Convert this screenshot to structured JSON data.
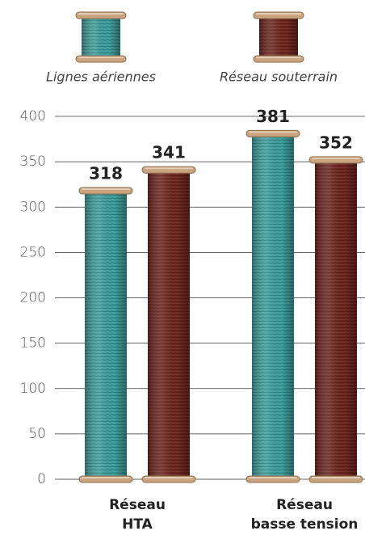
{
  "chart_data": {
    "type": "bar",
    "categories": [
      [
        "Réseau",
        "HTA"
      ],
      [
        "Réseau",
        "basse tension"
      ]
    ],
    "series": [
      {
        "name": "Lignes aériennes",
        "color": "#3a9e9c",
        "values": [
          318,
          381
        ]
      },
      {
        "name": "Réseau souterrain",
        "color": "#6e231c",
        "values": [
          341,
          352
        ]
      }
    ],
    "ylim": [
      0,
      400
    ],
    "yticks": [
      0,
      50,
      100,
      150,
      200,
      250,
      300,
      350,
      400
    ],
    "grid": true
  }
}
